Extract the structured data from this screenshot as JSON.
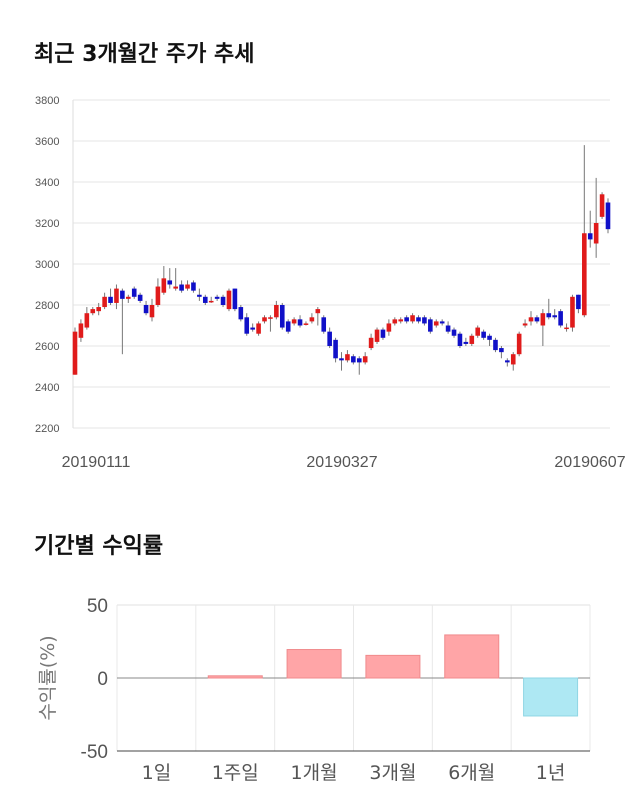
{
  "title1": "최근 3개월간 주가 추세",
  "title2": "기간별 수익률",
  "colors": {
    "up": "#e01b1b",
    "down": "#1010c8",
    "pos_bar": "#ffa5a7",
    "neg_bar": "#aee8f3"
  },
  "chart_data": [
    {
      "type": "candlestick",
      "title": "최근 3개월간 주가 추세",
      "ylim": [
        2200,
        3800
      ],
      "yticks": [
        2200,
        2400,
        2600,
        2800,
        3000,
        3200,
        3400,
        3600,
        3800
      ],
      "xticks": [
        "20190111",
        "20190327",
        "20190607"
      ],
      "grid": true,
      "candles": [
        [
          2460,
          2670,
          2460,
          2690
        ],
        [
          2640,
          2710,
          2620,
          2730
        ],
        [
          2690,
          2760,
          2680,
          2790
        ],
        [
          2760,
          2780,
          2750,
          2790
        ],
        [
          2770,
          2790,
          2750,
          2810
        ],
        [
          2790,
          2840,
          2780,
          2860
        ],
        [
          2840,
          2810,
          2800,
          2880
        ],
        [
          2810,
          2880,
          2780,
          2900
        ],
        [
          2870,
          2830,
          2560,
          2880
        ],
        [
          2830,
          2840,
          2810,
          2850
        ],
        [
          2880,
          2840,
          2830,
          2890
        ],
        [
          2850,
          2820,
          2810,
          2860
        ],
        [
          2800,
          2760,
          2750,
          2820
        ],
        [
          2740,
          2800,
          2720,
          2830
        ],
        [
          2800,
          2890,
          2790,
          2930
        ],
        [
          2860,
          2930,
          2850,
          2990
        ],
        [
          2920,
          2900,
          2880,
          2980
        ],
        [
          2880,
          2890,
          2870,
          2980
        ],
        [
          2900,
          2870,
          2860,
          2920
        ],
        [
          2880,
          2900,
          2870,
          2920
        ],
        [
          2910,
          2870,
          2860,
          2920
        ],
        [
          2850,
          2840,
          2820,
          2880
        ],
        [
          2840,
          2810,
          2800,
          2850
        ],
        [
          2820,
          2820,
          2810,
          2840
        ],
        [
          2840,
          2830,
          2820,
          2850
        ],
        [
          2840,
          2800,
          2790,
          2850
        ],
        [
          2780,
          2870,
          2770,
          2880
        ],
        [
          2880,
          2780,
          2770,
          2880
        ],
        [
          2790,
          2730,
          2720,
          2800
        ],
        [
          2740,
          2660,
          2650,
          2760
        ],
        [
          2690,
          2680,
          2670,
          2710
        ],
        [
          2660,
          2710,
          2650,
          2720
        ],
        [
          2720,
          2740,
          2710,
          2750
        ],
        [
          2740,
          2740,
          2670,
          2750
        ],
        [
          2740,
          2800,
          2730,
          2820
        ],
        [
          2800,
          2690,
          2680,
          2810
        ],
        [
          2720,
          2670,
          2660,
          2730
        ],
        [
          2710,
          2730,
          2700,
          2740
        ],
        [
          2730,
          2700,
          2690,
          2750
        ],
        [
          2710,
          2710,
          2700,
          2720
        ],
        [
          2720,
          2740,
          2710,
          2760
        ],
        [
          2760,
          2780,
          2700,
          2790
        ],
        [
          2740,
          2670,
          2660,
          2750
        ],
        [
          2670,
          2600,
          2590,
          2690
        ],
        [
          2630,
          2540,
          2520,
          2640
        ],
        [
          2540,
          2530,
          2480,
          2570
        ],
        [
          2530,
          2560,
          2520,
          2580
        ],
        [
          2550,
          2520,
          2510,
          2560
        ],
        [
          2540,
          2520,
          2460,
          2550
        ],
        [
          2520,
          2550,
          2510,
          2570
        ],
        [
          2590,
          2640,
          2580,
          2660
        ],
        [
          2620,
          2680,
          2610,
          2690
        ],
        [
          2680,
          2640,
          2630,
          2690
        ],
        [
          2670,
          2710,
          2650,
          2730
        ],
        [
          2710,
          2730,
          2700,
          2740
        ],
        [
          2720,
          2730,
          2710,
          2740
        ],
        [
          2740,
          2720,
          2710,
          2750
        ],
        [
          2720,
          2750,
          2710,
          2760
        ],
        [
          2740,
          2720,
          2710,
          2750
        ],
        [
          2740,
          2710,
          2700,
          2750
        ],
        [
          2730,
          2670,
          2660,
          2740
        ],
        [
          2700,
          2720,
          2690,
          2730
        ],
        [
          2720,
          2710,
          2700,
          2730
        ],
        [
          2700,
          2670,
          2660,
          2720
        ],
        [
          2680,
          2650,
          2640,
          2690
        ],
        [
          2660,
          2600,
          2590,
          2670
        ],
        [
          2620,
          2610,
          2600,
          2640
        ],
        [
          2610,
          2650,
          2600,
          2660
        ],
        [
          2650,
          2690,
          2640,
          2700
        ],
        [
          2670,
          2640,
          2630,
          2680
        ],
        [
          2650,
          2630,
          2600,
          2660
        ],
        [
          2630,
          2580,
          2570,
          2640
        ],
        [
          2590,
          2570,
          2540,
          2600
        ],
        [
          2530,
          2520,
          2500,
          2540
        ],
        [
          2510,
          2560,
          2480,
          2570
        ],
        [
          2560,
          2660,
          2550,
          2670
        ],
        [
          2700,
          2710,
          2690,
          2730
        ],
        [
          2720,
          2740,
          2700,
          2770
        ],
        [
          2740,
          2720,
          2710,
          2750
        ],
        [
          2700,
          2760,
          2600,
          2780
        ],
        [
          2760,
          2740,
          2730,
          2830
        ],
        [
          2750,
          2740,
          2730,
          2780
        ],
        [
          2770,
          2700,
          2690,
          2780
        ],
        [
          2690,
          2690,
          2670,
          2710
        ],
        [
          2690,
          2840,
          2670,
          2850
        ],
        [
          2850,
          2780,
          2760,
          2850
        ],
        [
          2750,
          3150,
          2740,
          3580
        ],
        [
          3150,
          3120,
          3080,
          3260
        ],
        [
          3100,
          3200,
          3030,
          3420
        ],
        [
          3230,
          3340,
          3220,
          3350
        ],
        [
          3300,
          3170,
          3150,
          3320
        ]
      ]
    },
    {
      "type": "bar",
      "title": "기간별 수익률",
      "ylabel": "수익률(%)",
      "ylim": [
        -50,
        50
      ],
      "yticks": [
        -50,
        0,
        50
      ],
      "categories": [
        "1일",
        "1주일",
        "1개월",
        "3개월",
        "6개월",
        "1년"
      ],
      "values": [
        0,
        1.5,
        19.5,
        15.5,
        29.5,
        -26
      ]
    }
  ]
}
